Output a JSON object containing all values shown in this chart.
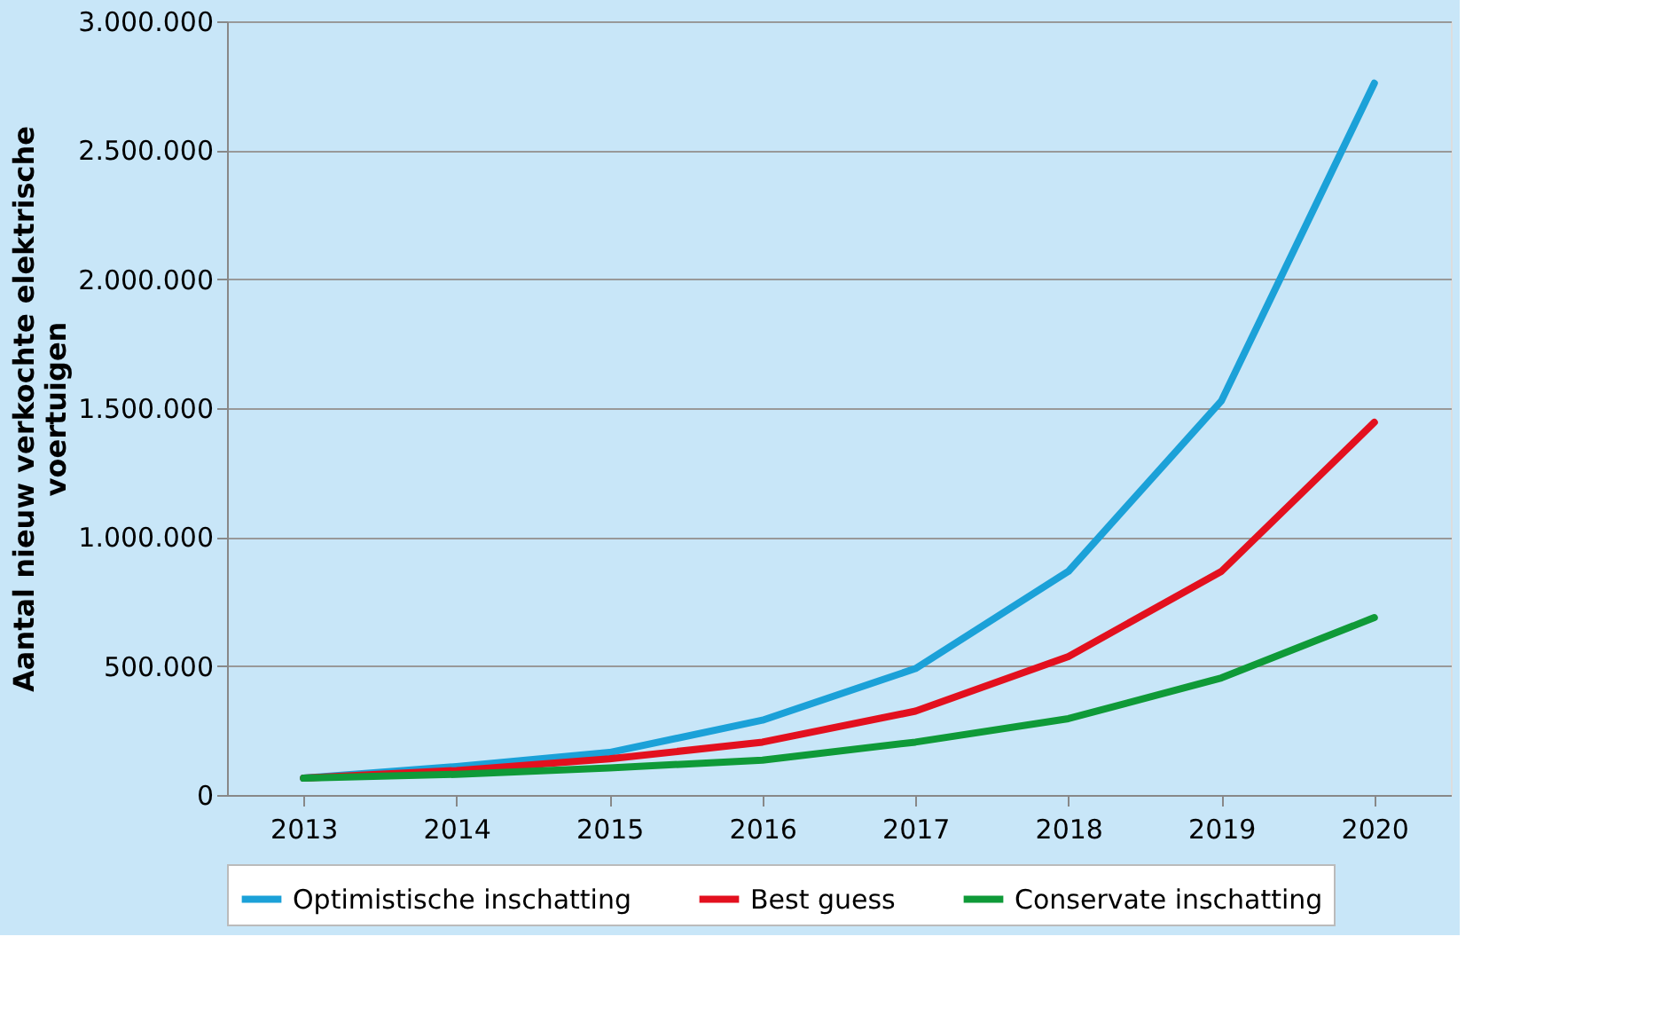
{
  "chart_data": {
    "type": "line",
    "categories": [
      "2013",
      "2014",
      "2015",
      "2016",
      "2017",
      "2018",
      "2019",
      "2020"
    ],
    "ylabel": "Aantal nieuw verkochte elektrische\nvoertuigen",
    "series": [
      {
        "name": "Optimistische inschatting",
        "color": "#1ba1d8",
        "values": [
          65000,
          110000,
          165000,
          290000,
          490000,
          867000,
          1528000,
          2760000
        ]
      },
      {
        "name": "Best guess",
        "color": "#e3101e",
        "values": [
          65000,
          95000,
          140000,
          205000,
          325000,
          537000,
          867000,
          1445000
        ]
      },
      {
        "name": "Conservate inschatting",
        "color": "#0f9a38",
        "values": [
          65000,
          80000,
          105000,
          135000,
          205000,
          296000,
          454000,
          688000
        ]
      }
    ],
    "ylim": [
      0,
      3000000
    ],
    "yticks": [
      0,
      {
        "value": 500000,
        "label": "500.000"
      },
      {
        "value": 1000000,
        "label": "1.000.000"
      },
      {
        "value": 1500000,
        "label": "1.500.000"
      },
      {
        "value": 2000000,
        "label": "2.000.000"
      },
      {
        "value": 2500000,
        "label": "2.500.000"
      },
      {
        "value": 3000000,
        "label": "3.000.000"
      }
    ],
    "grid": "y",
    "legend": "bottom",
    "marker": "none",
    "line_style": "solid"
  }
}
